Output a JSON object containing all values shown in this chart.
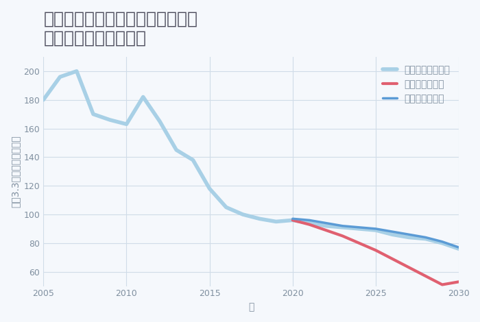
{
  "title": "福岡県京都郡みやこ町犀川末江の\n中古戸建ての価格推移",
  "xlabel": "年",
  "ylabel": "坪（3.3㎡）単価（万円）",
  "background_color": "#f5f8fc",
  "grid_color": "#d0dce8",
  "good_scenario": {
    "label": "グッドシナリオ",
    "color": "#5b9bd5",
    "years": [
      2005,
      2006,
      2007,
      2008,
      2009,
      2010,
      2011,
      2012,
      2013,
      2014,
      2015,
      2016,
      2017,
      2018,
      2019,
      2020,
      2021,
      2022,
      2023,
      2024,
      2025,
      2026,
      2027,
      2028,
      2029,
      2030
    ],
    "values": [
      null,
      null,
      null,
      null,
      null,
      null,
      null,
      null,
      null,
      null,
      null,
      null,
      null,
      null,
      null,
      97,
      96,
      94,
      92,
      91,
      90,
      88,
      86,
      84,
      81,
      77
    ]
  },
  "bad_scenario": {
    "label": "バッドシナリオ",
    "color": "#e06070",
    "years": [
      2005,
      2006,
      2007,
      2008,
      2009,
      2010,
      2011,
      2012,
      2013,
      2014,
      2015,
      2016,
      2017,
      2018,
      2019,
      2020,
      2021,
      2022,
      2023,
      2024,
      2025,
      2026,
      2027,
      2028,
      2029,
      2030
    ],
    "values": [
      null,
      null,
      null,
      null,
      null,
      null,
      null,
      null,
      null,
      null,
      null,
      null,
      null,
      null,
      null,
      96,
      93,
      89,
      85,
      80,
      75,
      69,
      63,
      57,
      51,
      53
    ]
  },
  "normal_scenario": {
    "label": "ノーマルシナリオ",
    "color": "#a8d0e6",
    "years": [
      2005,
      2006,
      2007,
      2008,
      2009,
      2010,
      2011,
      2012,
      2013,
      2014,
      2015,
      2016,
      2017,
      2018,
      2019,
      2020,
      2021,
      2022,
      2023,
      2024,
      2025,
      2026,
      2027,
      2028,
      2029,
      2030
    ],
    "values": [
      180,
      196,
      200,
      170,
      166,
      163,
      182,
      165,
      145,
      138,
      118,
      105,
      100,
      97,
      95,
      96,
      94,
      92,
      91,
      90,
      89,
      86,
      84,
      83,
      80,
      76
    ]
  },
  "ylim": [
    50,
    210
  ],
  "xlim": [
    2005,
    2030
  ],
  "yticks": [
    60,
    80,
    100,
    120,
    140,
    160,
    180,
    200
  ],
  "xticks": [
    2005,
    2010,
    2015,
    2020,
    2025,
    2030
  ],
  "title_color": "#4a4a5a",
  "tick_color": "#8090a0",
  "title_fontsize": 18,
  "legend_fontsize": 10,
  "axis_label_fontsize": 10,
  "linewidth": 2.5
}
